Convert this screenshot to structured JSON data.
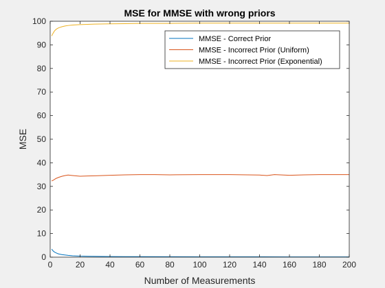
{
  "chart_data": {
    "type": "line",
    "title": "MSE for MMSE with wrong priors",
    "xlabel": "Number of Measurements",
    "ylabel": "MSE",
    "xlim": [
      0,
      200
    ],
    "ylim": [
      0,
      100
    ],
    "xticks": [
      0,
      20,
      40,
      60,
      80,
      100,
      120,
      140,
      160,
      180,
      200
    ],
    "yticks": [
      0,
      10,
      20,
      30,
      40,
      50,
      60,
      70,
      80,
      90,
      100
    ],
    "grid": false,
    "legend_position": "top-right",
    "series": [
      {
        "name": "MMSE - Correct Prior",
        "color": "#0072bd",
        "x": [
          1,
          2,
          3,
          4,
          5,
          6,
          8,
          10,
          12,
          15,
          20,
          25,
          30,
          40,
          50,
          60,
          80,
          100,
          120,
          140,
          160,
          180,
          200
        ],
        "y": [
          3.4,
          2.6,
          2.1,
          1.8,
          1.5,
          1.3,
          1.05,
          0.9,
          0.75,
          0.6,
          0.45,
          0.38,
          0.32,
          0.26,
          0.22,
          0.2,
          0.17,
          0.15,
          0.14,
          0.13,
          0.12,
          0.12,
          0.11
        ]
      },
      {
        "name": "MMSE - Incorrect Prior (Uniform)",
        "color": "#d95319",
        "x": [
          1,
          2,
          3,
          4,
          6,
          8,
          10,
          12,
          15,
          20,
          25,
          30,
          40,
          50,
          60,
          70,
          80,
          100,
          120,
          140,
          145,
          150,
          160,
          170,
          180,
          200
        ],
        "y": [
          32.3,
          32.6,
          33.0,
          33.4,
          33.9,
          34.3,
          34.6,
          34.8,
          34.6,
          34.3,
          34.4,
          34.5,
          34.7,
          34.9,
          35.0,
          35.0,
          34.9,
          35.0,
          35.0,
          34.8,
          34.6,
          35.0,
          34.7,
          34.9,
          35.0,
          35.0
        ]
      },
      {
        "name": "MMSE - Incorrect Prior (Exponential)",
        "color": "#edb120",
        "x": [
          1,
          2,
          3,
          4,
          5,
          6,
          8,
          10,
          12,
          15,
          20,
          25,
          30,
          40,
          50,
          60,
          80,
          100,
          120,
          140,
          160,
          180,
          200
        ],
        "y": [
          93.8,
          95.0,
          96.0,
          96.6,
          97.0,
          97.3,
          97.7,
          98.0,
          98.2,
          98.4,
          98.6,
          98.7,
          98.8,
          98.9,
          99.0,
          99.1,
          99.1,
          99.2,
          99.2,
          99.2,
          99.2,
          99.2,
          99.2
        ]
      }
    ]
  }
}
